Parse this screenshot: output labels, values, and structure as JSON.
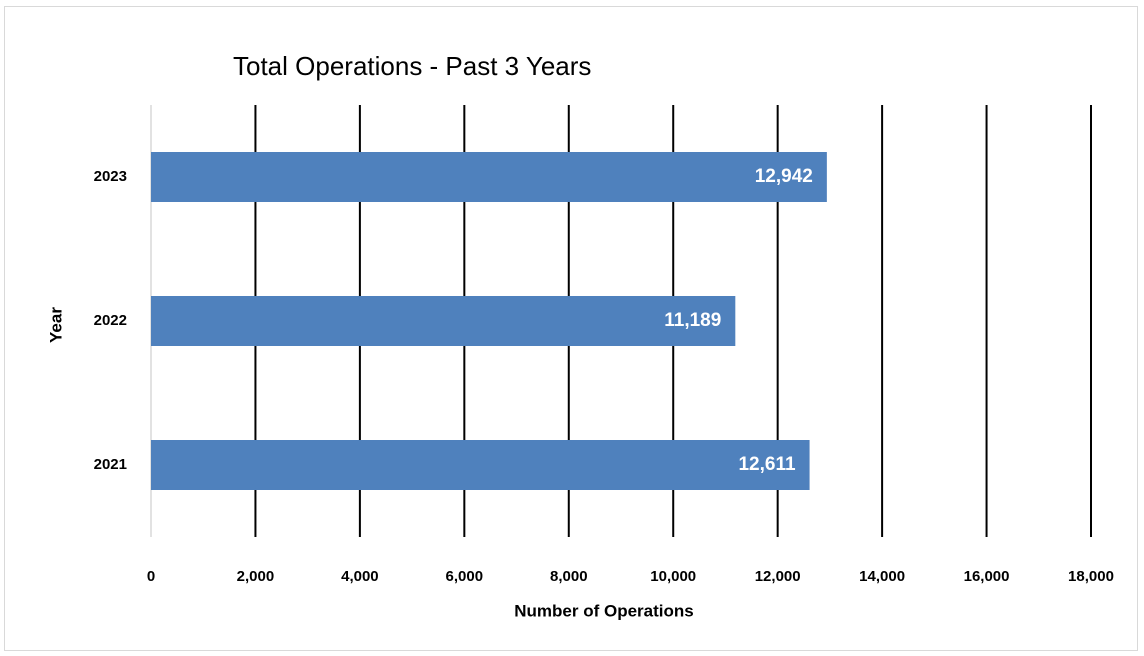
{
  "chart_data": {
    "type": "bar",
    "orientation": "horizontal",
    "title": "Total Operations - Past 3 Years",
    "x_label": "Number of Operations",
    "y_label": "Year",
    "categories": [
      "2021",
      "2022",
      "2023"
    ],
    "values": [
      12611,
      11189,
      12942
    ],
    "value_labels": [
      "12,611",
      "11,189",
      "12,942"
    ],
    "color": "#4f81bd",
    "xlim": [
      0,
      18000
    ],
    "xticks": [
      0,
      {
        "value": 2000,
        "label": "2,000"
      },
      {
        "value": 4000,
        "label": "4,000"
      },
      {
        "value": 6000,
        "label": "6,000"
      },
      {
        "value": 8000,
        "label": "8,000"
      },
      {
        "value": 10000,
        "label": "10,000"
      },
      {
        "value": 12000,
        "label": "12,000"
      },
      {
        "value": 14000,
        "label": "14,000"
      },
      {
        "value": 16000,
        "label": "16,000"
      },
      {
        "value": 18000,
        "label": "18,000"
      }
    ],
    "grid": true
  }
}
